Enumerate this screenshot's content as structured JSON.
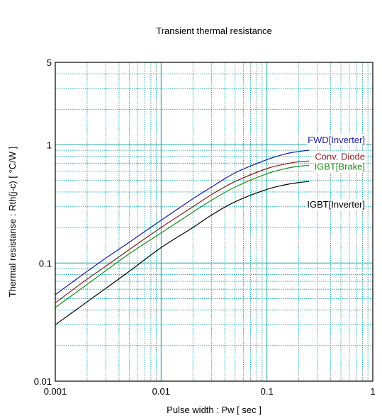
{
  "chart_data": {
    "type": "line",
    "title": "Transient thermal resistance",
    "xlabel": "Pulse width  :  Pw  [ sec ]",
    "ylabel": "Thermal resistanse  :  Rth(j-c)  [ °C/W ]",
    "xscale": "log",
    "yscale": "log",
    "xlim": [
      0.001,
      1
    ],
    "ylim": [
      0.01,
      5
    ],
    "xticks": [
      "0.001",
      "0.01",
      "0.1",
      "1"
    ],
    "yticks": [
      "0.01",
      "0.1",
      "1",
      "5"
    ],
    "grid": true,
    "grid_color": "#1aa3a3",
    "series": [
      {
        "name": "FWD[Inverter]",
        "color": "#1a1aa6",
        "x": [
          0.001,
          0.002,
          0.003,
          0.005,
          0.01,
          0.02,
          0.03,
          0.05,
          0.1,
          0.15,
          0.2,
          0.25
        ],
        "y": [
          0.054,
          0.085,
          0.11,
          0.15,
          0.23,
          0.35,
          0.44,
          0.58,
          0.75,
          0.84,
          0.88,
          0.9
        ]
      },
      {
        "name": "Conv. Diode",
        "color": "#8b1a1a",
        "x": [
          0.001,
          0.002,
          0.003,
          0.005,
          0.01,
          0.02,
          0.03,
          0.05,
          0.1,
          0.15,
          0.2,
          0.25
        ],
        "y": [
          0.046,
          0.073,
          0.094,
          0.13,
          0.2,
          0.3,
          0.38,
          0.49,
          0.63,
          0.69,
          0.72,
          0.73
        ]
      },
      {
        "name": "IGBT[Brake]",
        "color": "#1a8c1a",
        "x": [
          0.001,
          0.002,
          0.003,
          0.005,
          0.01,
          0.02,
          0.03,
          0.05,
          0.1,
          0.15,
          0.2,
          0.25
        ],
        "y": [
          0.042,
          0.066,
          0.086,
          0.12,
          0.18,
          0.27,
          0.34,
          0.44,
          0.57,
          0.63,
          0.66,
          0.67
        ]
      },
      {
        "name": "IGBT[Inverter]",
        "color": "#000000",
        "x": [
          0.001,
          0.002,
          0.003,
          0.005,
          0.01,
          0.02,
          0.03,
          0.05,
          0.1,
          0.15,
          0.2,
          0.25
        ],
        "y": [
          0.03,
          0.047,
          0.061,
          0.085,
          0.135,
          0.2,
          0.255,
          0.33,
          0.42,
          0.46,
          0.48,
          0.49
        ]
      }
    ]
  }
}
